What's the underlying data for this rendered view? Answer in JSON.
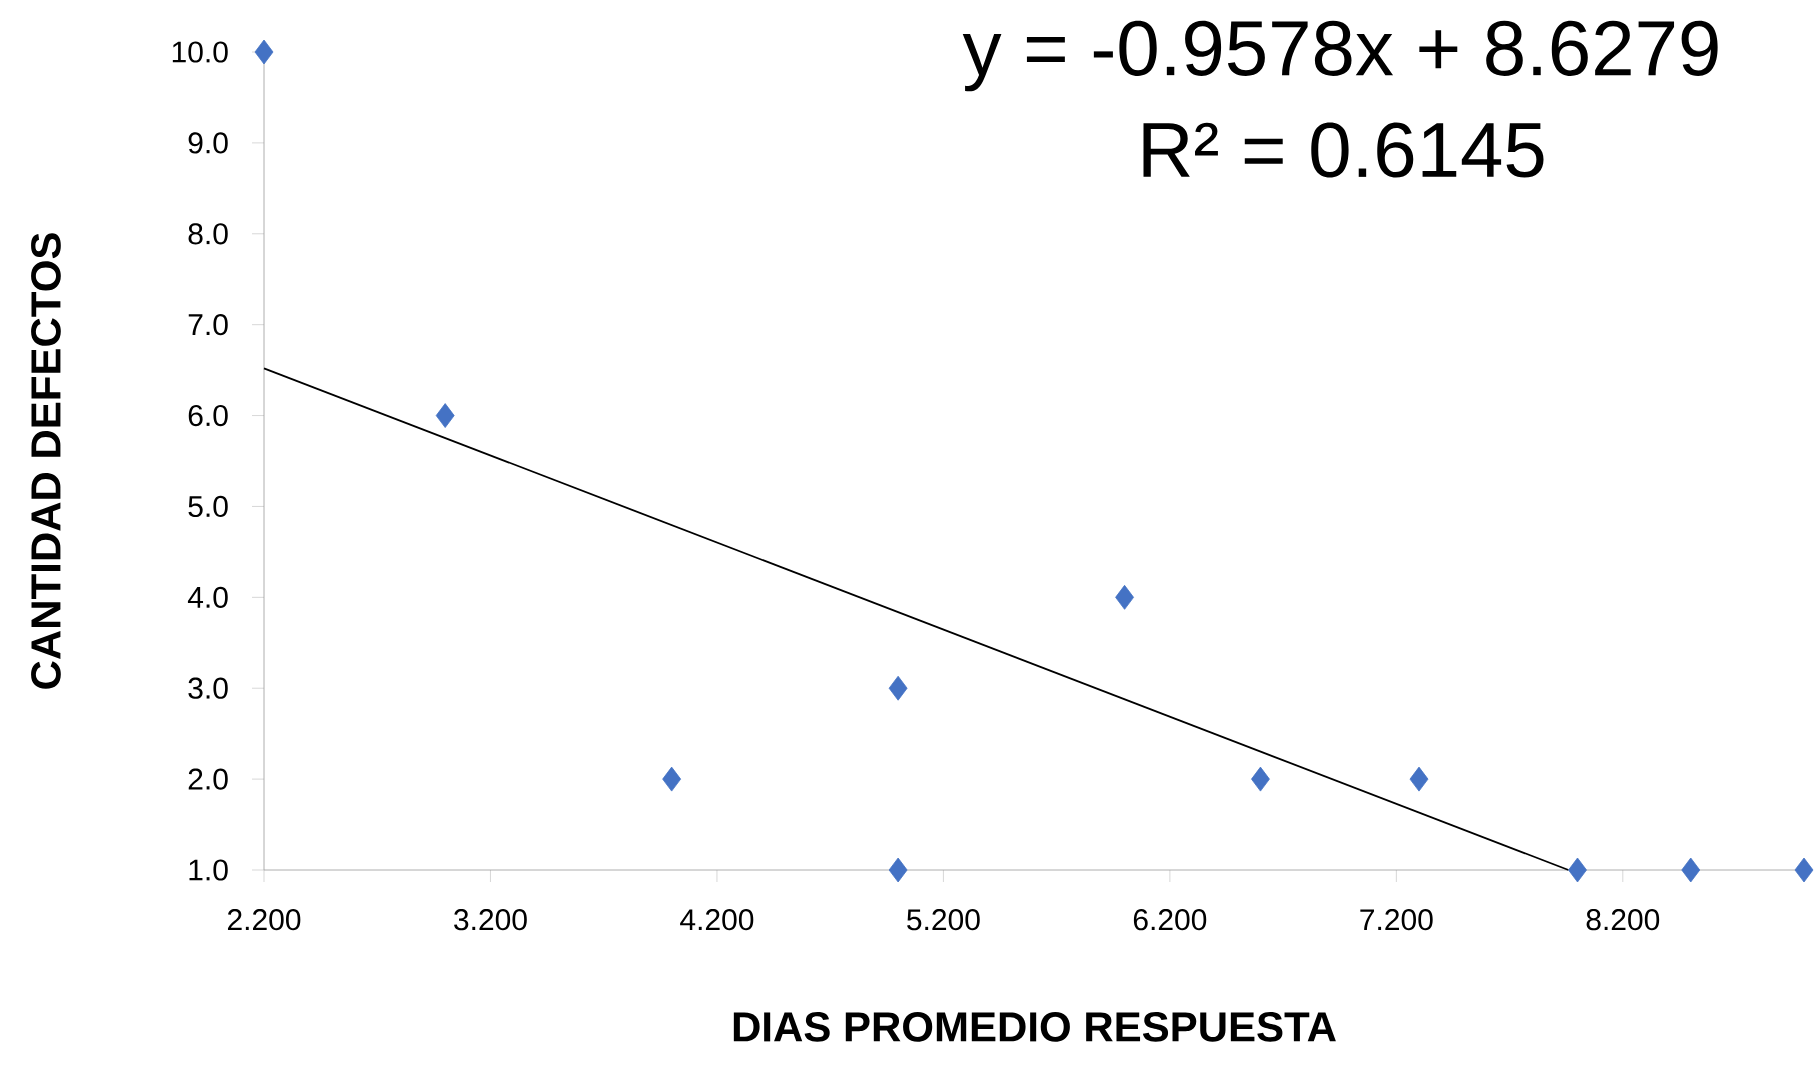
{
  "chart_data": {
    "type": "scatter",
    "xlabel": "DIAS PROMEDIO RESPUESTA",
    "ylabel": "CANTIDAD DEFECTOS",
    "xlim": [
      2.2,
      9.0
    ],
    "ylim": [
      1.0,
      10.0
    ],
    "xticks": [
      {
        "value": 2.2,
        "label": "2.200"
      },
      {
        "value": 3.2,
        "label": "3.200"
      },
      {
        "value": 4.2,
        "label": "4.200"
      },
      {
        "value": 5.2,
        "label": "5.200"
      },
      {
        "value": 6.2,
        "label": "6.200"
      },
      {
        "value": 7.2,
        "label": "7.200"
      },
      {
        "value": 8.2,
        "label": "8.200"
      }
    ],
    "yticks": [
      {
        "value": 1,
        "label": "1.0"
      },
      {
        "value": 2,
        "label": "2.0"
      },
      {
        "value": 3,
        "label": "3.0"
      },
      {
        "value": 4,
        "label": "4.0"
      },
      {
        "value": 5,
        "label": "5.0"
      },
      {
        "value": 6,
        "label": "6.0"
      },
      {
        "value": 7,
        "label": "7.0"
      },
      {
        "value": 8,
        "label": "8.0"
      },
      {
        "value": 9,
        "label": "9.0"
      },
      {
        "value": 10,
        "label": "10.0"
      }
    ],
    "grid": false,
    "marker": "diamond",
    "series": [
      {
        "color": "#4472c4",
        "x": [
          2.2,
          3.0,
          4.0,
          5.0,
          5.0,
          6.0,
          6.6,
          7.3,
          8.0,
          8.5,
          9.0
        ],
        "values": [
          10,
          6,
          2,
          3,
          1,
          4,
          2,
          2,
          1,
          1,
          1
        ]
      },
      {
        "type": "line",
        "color": "#000000",
        "marker": "none",
        "x": [
          2.2,
          7.96
        ],
        "values": [
          6.52,
          1.0
        ]
      }
    ],
    "annotations": [
      "y = -0.9578x + 8.6279",
      "R² = 0.6145"
    ]
  }
}
